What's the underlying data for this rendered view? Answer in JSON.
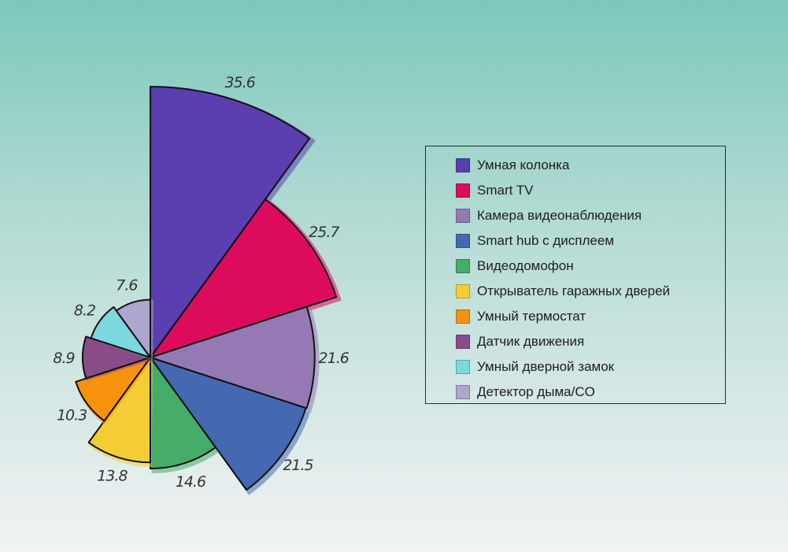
{
  "chart_data": {
    "type": "polar-area",
    "categories": [
      "Умная колонка",
      "Smart TV",
      "Камера видеонаблюдения",
      "Smart hub с дисплеем",
      "Видеодомофон",
      "Открыватель гаражных дверей",
      "Умный термостат",
      "Датчик движения",
      "Умный дверной замок",
      "Детектор дыма/CO"
    ],
    "values": [
      35.6,
      25.7,
      21.6,
      21.5,
      14.6,
      13.8,
      10.3,
      8.9,
      8.2,
      7.6
    ],
    "value_labels": [
      "35.6",
      "25.7",
      "21.6",
      "21.5",
      "14.6",
      "13.8",
      "10.3",
      "8.9",
      "8.2",
      "7.6"
    ],
    "colors": [
      "#5b3fb0",
      "#dd0b5c",
      "#9479b4",
      "#4569b0",
      "#46ac69",
      "#f4cd35",
      "#f7920d",
      "#8a4c88",
      "#7bd8df",
      "#aea6cf"
    ],
    "legend_position": "right",
    "grid": false
  }
}
